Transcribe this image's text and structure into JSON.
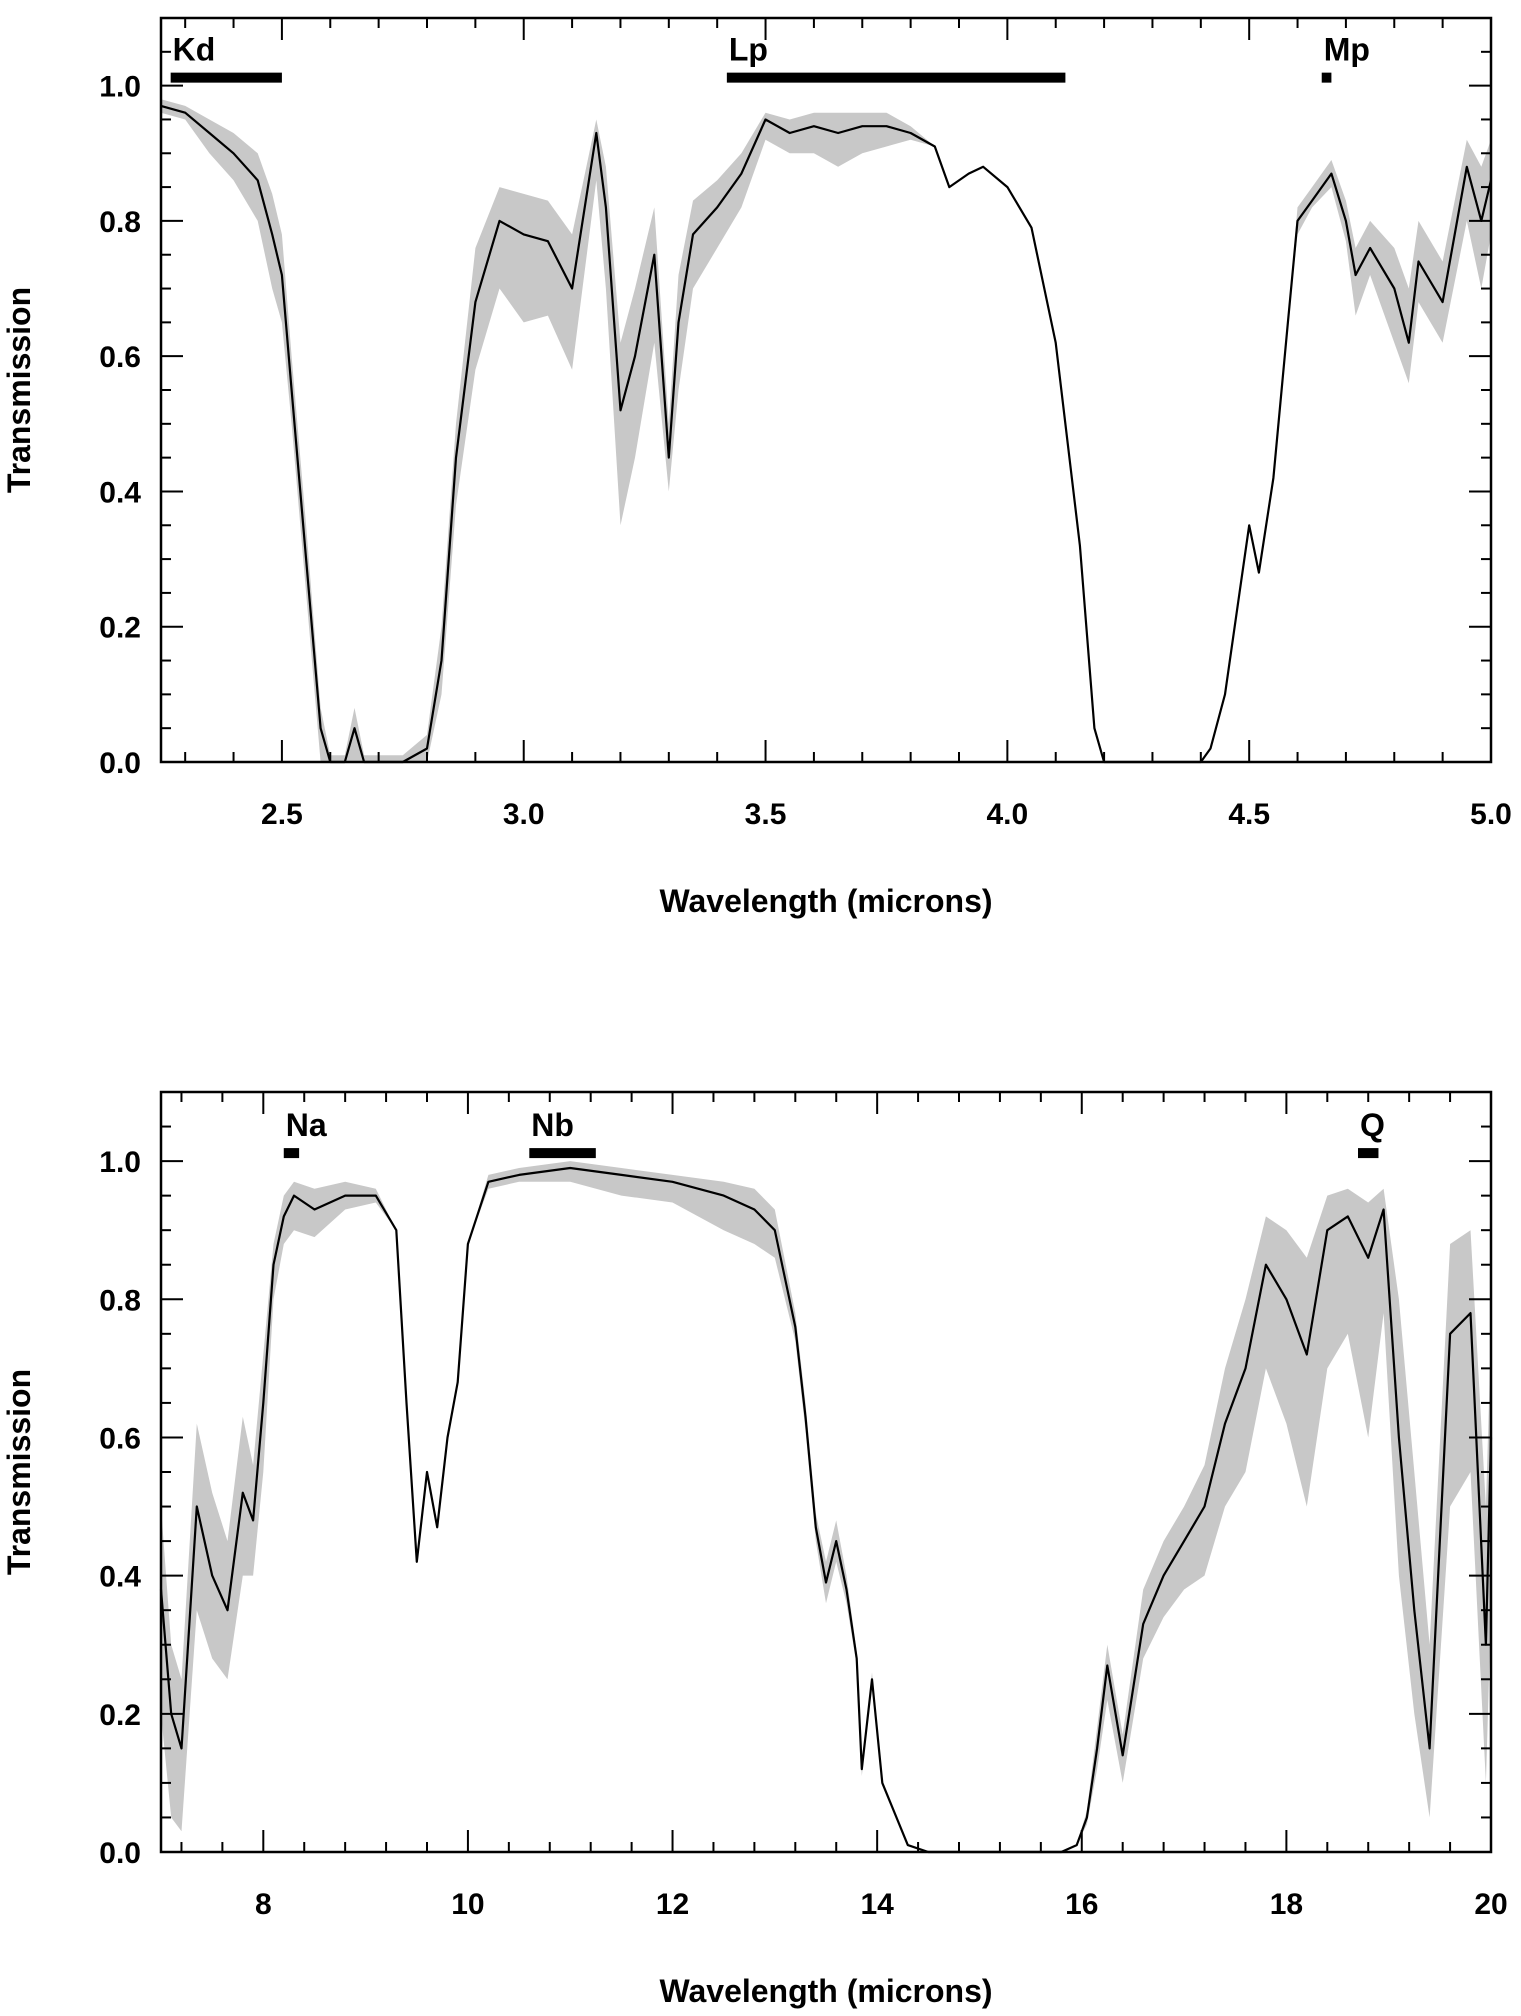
{
  "chart_data": [
    {
      "type": "line",
      "xlabel": "Wavelength (microns)",
      "ylabel": "Transmission",
      "xlim": [
        2.25,
        5.0
      ],
      "ylim": [
        0.0,
        1.1
      ],
      "xticks": [
        2.5,
        3.0,
        3.5,
        4.0,
        4.5,
        5.0
      ],
      "xtick_labels": [
        "2.5",
        "3.0",
        "3.5",
        "4.0",
        "4.5",
        "5.0"
      ],
      "yticks": [
        0.0,
        0.2,
        0.4,
        0.6,
        0.8,
        1.0
      ],
      "ytick_labels": [
        "0.0",
        "0.2",
        "0.4",
        "0.6",
        "0.8",
        "1.0"
      ],
      "grid": false,
      "colors": {
        "line": "#000000",
        "band": "#c8c8c8",
        "filter_bar": "#000000"
      },
      "filter_bands": [
        {
          "label": "Kd",
          "x_start": 2.27,
          "x_end": 2.5
        },
        {
          "label": "Lp",
          "x_start": 3.42,
          "x_end": 4.12
        },
        {
          "label": "Mp",
          "x_start": 4.65,
          "x_end": 4.67
        }
      ],
      "series": [
        {
          "x": [
            2.25,
            2.3,
            2.35,
            2.4,
            2.45,
            2.48,
            2.5,
            2.52,
            2.55,
            2.58,
            2.6,
            2.63,
            2.65,
            2.67,
            2.7,
            2.75,
            2.8,
            2.83,
            2.86,
            2.9,
            2.95,
            3.0,
            3.05,
            3.1,
            3.15,
            3.17,
            3.2,
            3.23,
            3.27,
            3.3,
            3.32,
            3.35,
            3.4,
            3.45,
            3.5,
            3.55,
            3.6,
            3.65,
            3.7,
            3.75,
            3.8,
            3.85,
            3.88,
            3.92,
            3.95,
            4.0,
            4.05,
            4.1,
            4.15,
            4.18,
            4.2,
            4.3,
            4.4,
            4.42,
            4.45,
            4.48,
            4.5,
            4.52,
            4.55,
            4.58,
            4.6,
            4.63,
            4.67,
            4.7,
            4.72,
            4.75,
            4.8,
            4.83,
            4.85,
            4.9,
            4.95,
            4.98,
            5.0
          ],
          "y": [
            0.97,
            0.96,
            0.93,
            0.9,
            0.86,
            0.78,
            0.72,
            0.55,
            0.3,
            0.05,
            0.0,
            0.0,
            0.05,
            0.0,
            0.0,
            0.0,
            0.02,
            0.15,
            0.45,
            0.68,
            0.8,
            0.78,
            0.77,
            0.7,
            0.93,
            0.82,
            0.52,
            0.6,
            0.75,
            0.45,
            0.65,
            0.78,
            0.82,
            0.87,
            0.95,
            0.93,
            0.94,
            0.93,
            0.94,
            0.94,
            0.93,
            0.91,
            0.85,
            0.87,
            0.88,
            0.85,
            0.79,
            0.62,
            0.32,
            0.05,
            0.0,
            0.0,
            0.0,
            0.02,
            0.1,
            0.25,
            0.35,
            0.28,
            0.42,
            0.65,
            0.8,
            0.83,
            0.87,
            0.8,
            0.72,
            0.76,
            0.7,
            0.62,
            0.74,
            0.68,
            0.88,
            0.8,
            0.86
          ],
          "band_low": [
            0.96,
            0.95,
            0.9,
            0.86,
            0.8,
            0.7,
            0.65,
            0.5,
            0.25,
            0.0,
            0.0,
            0.0,
            0.0,
            0.0,
            0.0,
            0.0,
            0.0,
            0.1,
            0.38,
            0.58,
            0.7,
            0.65,
            0.66,
            0.58,
            0.86,
            0.7,
            0.35,
            0.45,
            0.62,
            0.4,
            0.55,
            0.7,
            0.76,
            0.82,
            0.92,
            0.9,
            0.9,
            0.88,
            0.9,
            0.91,
            0.92,
            0.91,
            0.85,
            0.87,
            0.88,
            0.85,
            0.79,
            0.62,
            0.32,
            0.05,
            0.0,
            0.0,
            0.0,
            0.02,
            0.1,
            0.25,
            0.35,
            0.28,
            0.42,
            0.65,
            0.78,
            0.82,
            0.85,
            0.77,
            0.66,
            0.72,
            0.62,
            0.56,
            0.68,
            0.62,
            0.8,
            0.7,
            0.78
          ],
          "band_high": [
            0.98,
            0.97,
            0.95,
            0.93,
            0.9,
            0.84,
            0.78,
            0.6,
            0.35,
            0.08,
            0.01,
            0.01,
            0.08,
            0.01,
            0.01,
            0.01,
            0.04,
            0.2,
            0.5,
            0.76,
            0.85,
            0.84,
            0.83,
            0.78,
            0.95,
            0.88,
            0.62,
            0.7,
            0.82,
            0.5,
            0.72,
            0.83,
            0.86,
            0.9,
            0.96,
            0.95,
            0.96,
            0.96,
            0.96,
            0.96,
            0.94,
            0.91,
            0.85,
            0.87,
            0.88,
            0.85,
            0.79,
            0.62,
            0.32,
            0.05,
            0.0,
            0.0,
            0.0,
            0.02,
            0.1,
            0.25,
            0.35,
            0.28,
            0.42,
            0.65,
            0.82,
            0.85,
            0.89,
            0.83,
            0.76,
            0.8,
            0.76,
            0.7,
            0.8,
            0.74,
            0.92,
            0.88,
            0.92
          ]
        }
      ]
    },
    {
      "type": "line",
      "xlabel": "Wavelength (microns)",
      "ylabel": "Transmission",
      "xlim": [
        7.0,
        20.0
      ],
      "ylim": [
        0.0,
        1.1
      ],
      "xticks": [
        8,
        10,
        12,
        14,
        16,
        18,
        20
      ],
      "xtick_labels": [
        "8",
        "10",
        "12",
        "14",
        "16",
        "18",
        "20"
      ],
      "yticks": [
        0.0,
        0.2,
        0.4,
        0.6,
        0.8,
        1.0
      ],
      "ytick_labels": [
        "0.0",
        "0.2",
        "0.4",
        "0.6",
        "0.8",
        "1.0"
      ],
      "grid": false,
      "colors": {
        "line": "#000000",
        "band": "#c8c8c8",
        "filter_bar": "#000000"
      },
      "filter_bands": [
        {
          "label": "Na",
          "x_start": 8.2,
          "x_end": 8.35
        },
        {
          "label": "Nb",
          "x_start": 10.6,
          "x_end": 11.25
        },
        {
          "label": "Q",
          "x_start": 18.7,
          "x_end": 18.9
        }
      ],
      "series": [
        {
          "x": [
            7.0,
            7.1,
            7.2,
            7.35,
            7.5,
            7.65,
            7.8,
            7.9,
            8.0,
            8.1,
            8.2,
            8.3,
            8.5,
            8.8,
            9.1,
            9.3,
            9.4,
            9.5,
            9.6,
            9.7,
            9.8,
            9.9,
            10.0,
            10.2,
            10.5,
            11.0,
            11.5,
            12.0,
            12.5,
            12.8,
            13.0,
            13.2,
            13.3,
            13.4,
            13.5,
            13.6,
            13.7,
            13.8,
            13.85,
            13.95,
            14.05,
            14.3,
            14.5,
            15.0,
            15.5,
            15.8,
            15.95,
            16.05,
            16.15,
            16.25,
            16.4,
            16.6,
            16.8,
            17.0,
            17.2,
            17.4,
            17.6,
            17.8,
            18.0,
            18.2,
            18.4,
            18.6,
            18.8,
            18.95,
            19.1,
            19.25,
            19.4,
            19.6,
            19.8,
            19.95,
            20.0
          ],
          "y": [
            0.38,
            0.2,
            0.15,
            0.5,
            0.4,
            0.35,
            0.52,
            0.48,
            0.65,
            0.85,
            0.92,
            0.95,
            0.93,
            0.95,
            0.95,
            0.9,
            0.65,
            0.42,
            0.55,
            0.47,
            0.6,
            0.68,
            0.88,
            0.97,
            0.98,
            0.99,
            0.98,
            0.97,
            0.95,
            0.93,
            0.9,
            0.76,
            0.63,
            0.47,
            0.39,
            0.45,
            0.38,
            0.28,
            0.12,
            0.25,
            0.1,
            0.01,
            0.0,
            0.0,
            0.0,
            0.0,
            0.01,
            0.05,
            0.15,
            0.27,
            0.14,
            0.33,
            0.4,
            0.45,
            0.5,
            0.62,
            0.7,
            0.85,
            0.8,
            0.72,
            0.9,
            0.92,
            0.86,
            0.93,
            0.6,
            0.35,
            0.15,
            0.75,
            0.78,
            0.3,
            0.6
          ],
          "band_low": [
            0.2,
            0.05,
            0.03,
            0.35,
            0.28,
            0.25,
            0.4,
            0.4,
            0.55,
            0.8,
            0.88,
            0.9,
            0.89,
            0.93,
            0.94,
            0.9,
            0.65,
            0.42,
            0.55,
            0.47,
            0.6,
            0.68,
            0.88,
            0.96,
            0.97,
            0.97,
            0.95,
            0.94,
            0.9,
            0.88,
            0.86,
            0.74,
            0.61,
            0.45,
            0.36,
            0.42,
            0.36,
            0.27,
            0.11,
            0.24,
            0.1,
            0.01,
            0.0,
            0.0,
            0.0,
            0.0,
            0.01,
            0.04,
            0.12,
            0.22,
            0.1,
            0.28,
            0.34,
            0.38,
            0.4,
            0.5,
            0.55,
            0.7,
            0.62,
            0.5,
            0.7,
            0.75,
            0.6,
            0.78,
            0.4,
            0.2,
            0.05,
            0.5,
            0.55,
            0.1,
            0.35
          ],
          "band_high": [
            0.5,
            0.3,
            0.25,
            0.62,
            0.52,
            0.45,
            0.63,
            0.56,
            0.72,
            0.88,
            0.95,
            0.97,
            0.96,
            0.97,
            0.96,
            0.9,
            0.65,
            0.42,
            0.55,
            0.47,
            0.6,
            0.68,
            0.88,
            0.98,
            0.99,
            1.0,
            0.99,
            0.98,
            0.97,
            0.96,
            0.93,
            0.78,
            0.65,
            0.49,
            0.42,
            0.48,
            0.4,
            0.29,
            0.13,
            0.26,
            0.1,
            0.01,
            0.0,
            0.0,
            0.0,
            0.0,
            0.01,
            0.06,
            0.18,
            0.3,
            0.17,
            0.38,
            0.45,
            0.5,
            0.56,
            0.7,
            0.8,
            0.92,
            0.9,
            0.86,
            0.95,
            0.96,
            0.94,
            0.96,
            0.8,
            0.55,
            0.3,
            0.88,
            0.9,
            0.5,
            0.75
          ]
        }
      ]
    }
  ]
}
